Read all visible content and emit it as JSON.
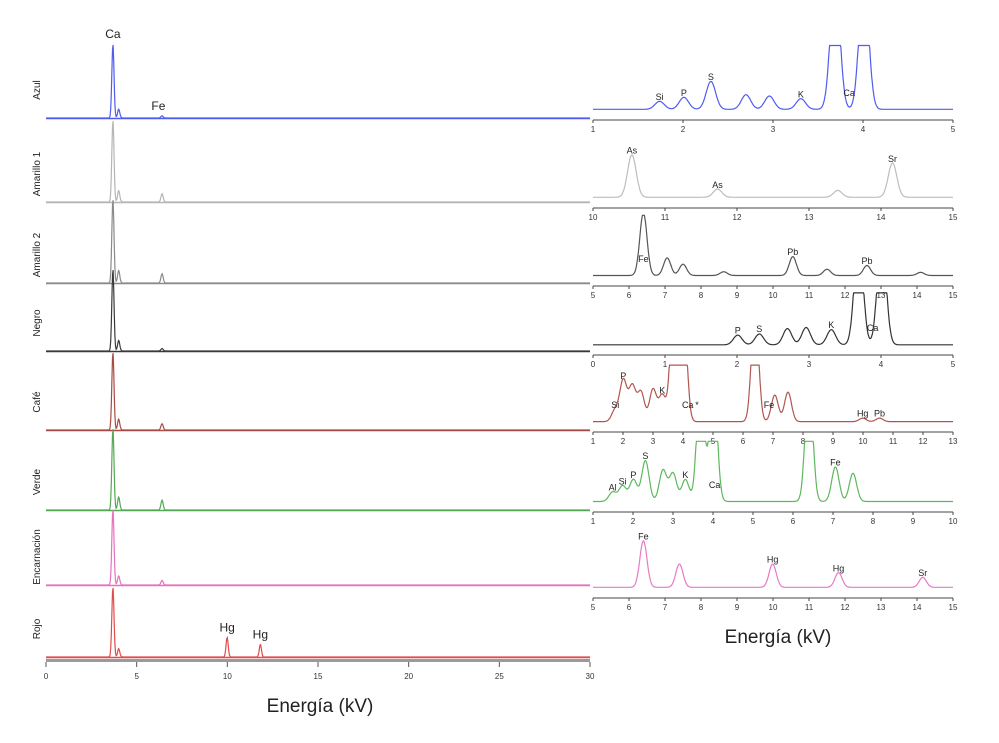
{
  "chart_data": [
    {
      "type": "line",
      "title": "",
      "xlabel": "Energía (kV)",
      "ylabel": "",
      "xlim": [
        0,
        30
      ],
      "x_ticks": [
        "0",
        "5",
        "10",
        "15",
        "20",
        "25",
        "30"
      ],
      "grid": false,
      "legend": "none",
      "series": [
        {
          "name": "Azul",
          "color": "#4f5cf0",
          "peaks": [
            {
              "x": 3.69,
              "h": 1.0
            },
            {
              "x": 4.01,
              "h": 0.12
            },
            {
              "x": 6.4,
              "h": 0.03
            }
          ],
          "labels": [
            {
              "text": "Ca",
              "x": 3.69
            },
            {
              "text": "Fe",
              "x": 6.2
            }
          ]
        },
        {
          "name": "Amarillo 1",
          "color": "#b5b5b5",
          "peaks": [
            {
              "x": 3.69,
              "h": 1.0
            },
            {
              "x": 4.01,
              "h": 0.14
            },
            {
              "x": 6.4,
              "h": 0.1
            }
          ]
        },
        {
          "name": "Amarillo 2",
          "color": "#8a8a8a",
          "peaks": [
            {
              "x": 3.69,
              "h": 1.0
            },
            {
              "x": 4.01,
              "h": 0.15
            },
            {
              "x": 6.4,
              "h": 0.11
            }
          ]
        },
        {
          "name": "Negro",
          "color": "#3a3a3a",
          "peaks": [
            {
              "x": 3.69,
              "h": 1.0
            },
            {
              "x": 4.01,
              "h": 0.13
            },
            {
              "x": 6.4,
              "h": 0.03
            }
          ]
        },
        {
          "name": "Café",
          "color": "#a94a44",
          "peaks": [
            {
              "x": 3.69,
              "h": 1.0
            },
            {
              "x": 4.01,
              "h": 0.14
            },
            {
              "x": 6.4,
              "h": 0.08
            }
          ]
        },
        {
          "name": "Verde",
          "color": "#55a855",
          "peaks": [
            {
              "x": 3.69,
              "h": 1.0
            },
            {
              "x": 4.01,
              "h": 0.16
            },
            {
              "x": 6.4,
              "h": 0.12
            }
          ]
        },
        {
          "name": "Encarnación",
          "color": "#e870c0",
          "peaks": [
            {
              "x": 3.69,
              "h": 1.0
            },
            {
              "x": 4.01,
              "h": 0.12
            },
            {
              "x": 6.4,
              "h": 0.06
            }
          ]
        },
        {
          "name": "Rojo",
          "color": "#e24b4b",
          "peaks": [
            {
              "x": 3.69,
              "h": 1.0
            },
            {
              "x": 4.01,
              "h": 0.12
            },
            {
              "x": 9.99,
              "h": 0.28
            },
            {
              "x": 11.82,
              "h": 0.18
            }
          ],
          "labels": [
            {
              "text": "Hg",
              "x": 9.99
            },
            {
              "text": "Hg",
              "x": 11.82
            }
          ]
        }
      ]
    },
    {
      "type": "line",
      "title": "",
      "xlabel": "Energía (kV)",
      "grid": false,
      "legend": "none",
      "panels": [
        {
          "series": "Azul",
          "color": "#4f5cf0",
          "xlim": [
            1,
            5
          ],
          "x_ticks": [
            "1",
            "2",
            "3",
            "4",
            "5"
          ],
          "peaks": [
            {
              "x": 1.74,
              "h": 0.12
            },
            {
              "x": 2.01,
              "h": 0.18
            },
            {
              "x": 2.31,
              "h": 0.42
            },
            {
              "x": 2.7,
              "h": 0.22
            },
            {
              "x": 2.96,
              "h": 0.2
            },
            {
              "x": 3.31,
              "h": 0.16
            },
            {
              "x": 3.69,
              "h": 2.0
            },
            {
              "x": 4.01,
              "h": 2.0
            }
          ],
          "labels": [
            {
              "text": "Si",
              "x": 1.74
            },
            {
              "text": "P",
              "x": 2.01
            },
            {
              "text": "S",
              "x": 2.31
            },
            {
              "text": "K",
              "x": 3.31
            },
            {
              "text": "Ca",
              "x": 3.69
            }
          ]
        },
        {
          "series": "Amarillo 1",
          "color": "#bdbdbd",
          "xlim": [
            10,
            15
          ],
          "x_ticks": [
            "10",
            "11",
            "12",
            "13",
            "14",
            "15"
          ],
          "peaks": [
            {
              "x": 10.54,
              "h": 0.62
            },
            {
              "x": 11.73,
              "h": 0.12
            },
            {
              "x": 13.4,
              "h": 0.1
            },
            {
              "x": 14.16,
              "h": 0.5
            }
          ],
          "labels": [
            {
              "text": "As",
              "x": 10.54
            },
            {
              "text": "As",
              "x": 11.73
            },
            {
              "text": "Sr",
              "x": 14.16
            }
          ]
        },
        {
          "series": "Amarillo 2",
          "color": "#555555",
          "xlim": [
            5,
            15
          ],
          "x_ticks": [
            "5",
            "6",
            "7",
            "8",
            "9",
            "10",
            "11",
            "12",
            "13",
            "14",
            "15"
          ],
          "peaks": [
            {
              "x": 6.4,
              "h": 1.0
            },
            {
              "x": 7.06,
              "h": 0.28
            },
            {
              "x": 7.5,
              "h": 0.18
            },
            {
              "x": 8.63,
              "h": 0.06
            },
            {
              "x": 10.55,
              "h": 0.3
            },
            {
              "x": 11.5,
              "h": 0.1
            },
            {
              "x": 12.61,
              "h": 0.16
            },
            {
              "x": 14.1,
              "h": 0.05
            }
          ],
          "labels": [
            {
              "text": "Fe",
              "x": 6.4
            },
            {
              "text": "Pb",
              "x": 10.55
            },
            {
              "text": "Pb",
              "x": 12.61
            }
          ]
        },
        {
          "series": "Negro",
          "color": "#333333",
          "xlim": [
            0,
            5
          ],
          "x_ticks": [
            "0",
            "1",
            "2",
            "3",
            "4",
            "5"
          ],
          "peaks": [
            {
              "x": 2.01,
              "h": 0.18
            },
            {
              "x": 2.31,
              "h": 0.2
            },
            {
              "x": 2.7,
              "h": 0.3
            },
            {
              "x": 2.96,
              "h": 0.32
            },
            {
              "x": 3.31,
              "h": 0.28
            },
            {
              "x": 3.69,
              "h": 2.0
            },
            {
              "x": 4.01,
              "h": 2.0
            }
          ],
          "labels": [
            {
              "text": "P",
              "x": 2.01
            },
            {
              "text": "S",
              "x": 2.31
            },
            {
              "text": "K",
              "x": 3.31
            },
            {
              "text": "Ca",
              "x": 3.69
            }
          ]
        },
        {
          "series": "Café",
          "color": "#b05550",
          "xlim": [
            1,
            13
          ],
          "x_ticks": [
            "1",
            "2",
            "3",
            "4",
            "5",
            "6",
            "7",
            "8",
            "9",
            "10",
            "11",
            "12",
            "13"
          ],
          "peaks": [
            {
              "x": 1.74,
              "h": 0.2
            },
            {
              "x": 2.01,
              "h": 0.7
            },
            {
              "x": 2.31,
              "h": 0.6
            },
            {
              "x": 2.6,
              "h": 0.5
            },
            {
              "x": 3.0,
              "h": 0.55
            },
            {
              "x": 3.31,
              "h": 0.45
            },
            {
              "x": 3.69,
              "h": 2.0
            },
            {
              "x": 4.01,
              "h": 2.0
            },
            {
              "x": 6.4,
              "h": 2.0
            },
            {
              "x": 7.06,
              "h": 0.45
            },
            {
              "x": 7.5,
              "h": 0.5
            },
            {
              "x": 9.99,
              "h": 0.06
            },
            {
              "x": 10.55,
              "h": 0.06
            }
          ],
          "labels": [
            {
              "text": "Si",
              "x": 1.74
            },
            {
              "text": "P",
              "x": 2.01
            },
            {
              "text": "K",
              "x": 3.31
            },
            {
              "text": "Ca",
              "x": 3.69
            },
            {
              "text": "*",
              "x": 4.0
            },
            {
              "text": "Fe",
              "x": 6.4
            },
            {
              "text": "Hg",
              "x": 9.99
            },
            {
              "text": "Pb",
              "x": 10.55
            }
          ]
        },
        {
          "series": "Verde",
          "color": "#5db85d",
          "xlim": [
            1,
            10
          ],
          "x_ticks": [
            "1",
            "2",
            "3",
            "4",
            "5",
            "6",
            "7",
            "8",
            "9",
            "10"
          ],
          "peaks": [
            {
              "x": 1.49,
              "h": 0.15
            },
            {
              "x": 1.74,
              "h": 0.25
            },
            {
              "x": 2.01,
              "h": 0.35
            },
            {
              "x": 2.31,
              "h": 0.65
            },
            {
              "x": 2.75,
              "h": 0.5
            },
            {
              "x": 3.0,
              "h": 0.45
            },
            {
              "x": 3.31,
              "h": 0.35
            },
            {
              "x": 3.69,
              "h": 2.0
            },
            {
              "x": 4.01,
              "h": 2.0
            },
            {
              "x": 6.4,
              "h": 2.0
            },
            {
              "x": 7.06,
              "h": 0.55
            },
            {
              "x": 7.5,
              "h": 0.45
            }
          ],
          "labels": [
            {
              "text": "Al",
              "x": 1.49
            },
            {
              "text": "Si",
              "x": 1.74
            },
            {
              "text": "P",
              "x": 2.01
            },
            {
              "text": "S",
              "x": 2.31
            },
            {
              "text": "K",
              "x": 3.31
            },
            {
              "text": "Ca",
              "x": 3.69
            },
            {
              "text": "Fe",
              "x": 7.06
            }
          ]
        },
        {
          "series": "Encarnación",
          "color": "#e57ac8",
          "xlim": [
            5,
            15
          ],
          "x_ticks": [
            "5",
            "6",
            "7",
            "8",
            "9",
            "10",
            "11",
            "12",
            "13",
            "14",
            "15"
          ],
          "peaks": [
            {
              "x": 6.4,
              "h": 0.7
            },
            {
              "x": 7.4,
              "h": 0.35
            },
            {
              "x": 9.99,
              "h": 0.35
            },
            {
              "x": 11.82,
              "h": 0.22
            },
            {
              "x": 14.16,
              "h": 0.15
            }
          ],
          "labels": [
            {
              "text": "Fe",
              "x": 6.4
            },
            {
              "text": "Hg",
              "x": 9.99
            },
            {
              "text": "Hg",
              "x": 11.82
            },
            {
              "text": "Sr",
              "x": 14.16
            }
          ]
        }
      ]
    }
  ]
}
